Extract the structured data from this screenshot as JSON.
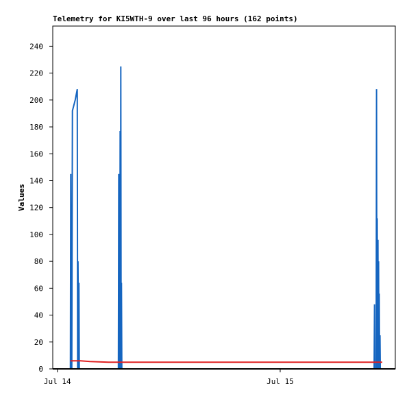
{
  "chart_data": {
    "type": "line",
    "title": "Telemetry for KI5WTH-9 over last 96 hours (162 points)",
    "y_label": "Values",
    "xlim": [
      -0.5,
      36.4
    ],
    "xticks": [
      {
        "value": 0,
        "label": "Jul 14"
      },
      {
        "value": 24,
        "label": "Jul 15"
      }
    ],
    "ylim": [
      0,
      255
    ],
    "yticks": [
      0,
      20,
      40,
      60,
      80,
      100,
      120,
      140,
      160,
      180,
      200,
      220,
      240
    ],
    "series": [
      {
        "color": "#1565c0",
        "x": [
          1.4,
          1.44,
          1.48,
          1.52,
          1.55,
          1.62,
          1.92,
          2.14,
          2.18,
          2.22,
          2.29,
          2.32,
          2.36,
          6.57,
          6.61,
          6.65,
          6.68,
          6.72,
          6.76,
          6.79,
          6.83,
          6.87,
          6.9,
          6.94,
          34.12,
          34.16,
          34.19,
          34.34,
          34.38,
          34.42,
          34.45,
          34.49,
          34.53,
          34.56,
          34.6,
          34.64,
          34.67,
          34.71,
          34.75,
          34.78
        ],
        "values": [
          0,
          145,
          0,
          17,
          0,
          192,
          200,
          208,
          0,
          80,
          0,
          64,
          0,
          0,
          145,
          0,
          80,
          0,
          177,
          0,
          225,
          0,
          64,
          0,
          0,
          48,
          0,
          0,
          208,
          0,
          112,
          0,
          96,
          0,
          80,
          0,
          56,
          0,
          25,
          0
        ]
      },
      {
        "color": "#e02020",
        "x": [
          1.4,
          2.5,
          3.5,
          5.5,
          6.6,
          35.0
        ],
        "values": [
          6,
          6,
          5.5,
          5,
          5,
          5
        ]
      }
    ]
  }
}
